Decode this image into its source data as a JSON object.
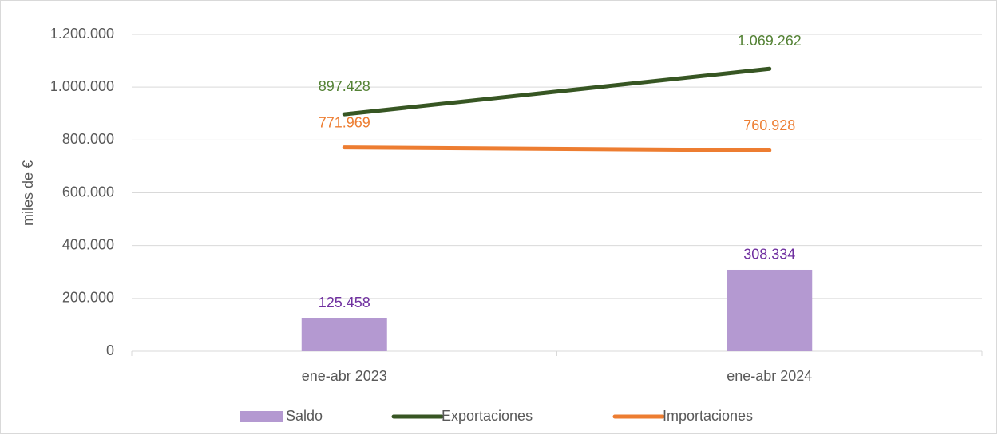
{
  "chart_data": {
    "type": "combo",
    "y_label": "miles de €",
    "categories": [
      "ene-abr 2023",
      "ene-abr 2024"
    ],
    "series": [
      {
        "name": "Saldo",
        "type": "bar",
        "color": "#b499d1",
        "label_color": "#7030a0",
        "values": [
          125458,
          308334
        ],
        "value_labels": [
          "125.458",
          "308.334"
        ]
      },
      {
        "name": "Exportaciones",
        "type": "line",
        "color": "#375623",
        "label_color": "#548235",
        "values": [
          897428,
          1069262
        ],
        "value_labels": [
          "897.428",
          "1.069.262"
        ]
      },
      {
        "name": "Importaciones",
        "type": "line",
        "color": "#ed7d31",
        "label_color": "#ed7d31",
        "values": [
          771969,
          760928
        ],
        "value_labels": [
          "771.969",
          "760.928"
        ]
      }
    ],
    "ylim": [
      0,
      1200000
    ],
    "yticks": [
      0,
      {
        "value": 200000,
        "label": "200.000"
      },
      {
        "value": 400000,
        "label": "400.000"
      },
      {
        "value": 600000,
        "label": "600.000"
      },
      {
        "value": 800000,
        "label": "800.000"
      },
      {
        "value": 1000000,
        "label": "1.000.000"
      },
      {
        "value": 1200000,
        "label": "1.200.000"
      }
    ],
    "grid": true,
    "legend": "bottom"
  }
}
